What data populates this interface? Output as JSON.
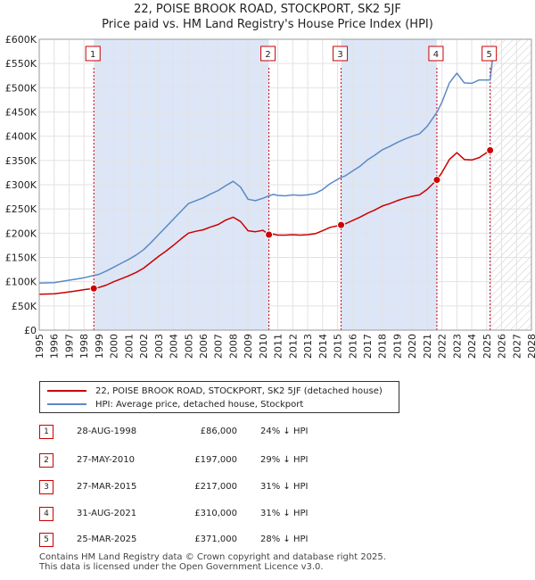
{
  "title_line1": "22, POISE BROOK ROAD, STOCKPORT, SK2 5JF",
  "title_line2": "Price paid vs. HM Land Registry's House Price Index (HPI)",
  "legend": {
    "property_label": "22, POISE BROOK ROAD, STOCKPORT, SK2 5JF (detached house)",
    "hpi_label": "HPI: Average price, detached house, Stockport"
  },
  "sales": [
    {
      "num": "1",
      "date": "28-AUG-1998",
      "price": "£86,000",
      "hpi": "24% ↓ HPI"
    },
    {
      "num": "2",
      "date": "27-MAY-2010",
      "price": "£197,000",
      "hpi": "29% ↓ HPI"
    },
    {
      "num": "3",
      "date": "27-MAR-2015",
      "price": "£217,000",
      "hpi": "31% ↓ HPI"
    },
    {
      "num": "4",
      "date": "31-AUG-2021",
      "price": "£310,000",
      "hpi": "31% ↓ HPI"
    },
    {
      "num": "5",
      "date": "25-MAR-2025",
      "price": "£371,000",
      "hpi": "28% ↓ HPI"
    }
  ],
  "footer_line1": "Contains HM Land Registry data © Crown copyright and database right 2025.",
  "footer_line2": "This data is licensed under the Open Government Licence v3.0.",
  "colors": {
    "property": "#cc0000",
    "hpi": "#5b8ac5",
    "shade": "#dde6f7",
    "grid": "#e2e2e2",
    "marker_border": "#cc0000"
  },
  "chart_data": {
    "type": "line",
    "title": "22, POISE BROOK ROAD, STOCKPORT, SK2 5JF",
    "subtitle": "Price paid vs. HM Land Registry's House Price Index (HPI)",
    "xlabel": "",
    "ylabel": "",
    "xlim": [
      1995,
      2028
    ],
    "ylim": [
      0,
      600000
    ],
    "x_ticks": [
      1995,
      1996,
      1997,
      1998,
      1999,
      2000,
      2001,
      2002,
      2003,
      2004,
      2005,
      2006,
      2007,
      2008,
      2009,
      2010,
      2011,
      2012,
      2013,
      2014,
      2015,
      2016,
      2017,
      2018,
      2019,
      2020,
      2021,
      2022,
      2023,
      2024,
      2025,
      2026,
      2027,
      2028
    ],
    "y_ticks": [
      {
        "value": 0,
        "label": "£0"
      },
      {
        "value": 50000,
        "label": "£50K"
      },
      {
        "value": 100000,
        "label": "£100K"
      },
      {
        "value": 150000,
        "label": "£150K"
      },
      {
        "value": 200000,
        "label": "£200K"
      },
      {
        "value": 250000,
        "label": "£250K"
      },
      {
        "value": 300000,
        "label": "£300K"
      },
      {
        "value": 350000,
        "label": "£350K"
      },
      {
        "value": 400000,
        "label": "£400K"
      },
      {
        "value": 450000,
        "label": "£450K"
      },
      {
        "value": 500000,
        "label": "£500K"
      },
      {
        "value": 550000,
        "label": "£550K"
      },
      {
        "value": 600000,
        "label": "£600K"
      }
    ],
    "grid": true,
    "legend_position": "below",
    "forecast_start": 2025.3,
    "shaded_ranges": [
      [
        1998.66,
        2010.4
      ],
      [
        2015.24,
        2021.66
      ],
      [
        2025.23,
        2025.3
      ]
    ],
    "series": [
      {
        "name": "22, POISE BROOK ROAD, STOCKPORT, SK2 5JF (detached house)",
        "x": [
          1995.0,
          1995.5,
          1996.0,
          1996.5,
          1997.0,
          1997.5,
          1998.0,
          1998.66,
          1999.0,
          1999.5,
          2000.0,
          2000.5,
          2001.0,
          2001.5,
          2002.0,
          2002.5,
          2003.0,
          2003.5,
          2004.0,
          2004.5,
          2005.0,
          2005.5,
          2006.0,
          2006.5,
          2007.0,
          2007.5,
          2008.0,
          2008.5,
          2009.0,
          2009.5,
          2010.0,
          2010.4,
          2010.7,
          2011.0,
          2011.5,
          2012.0,
          2012.5,
          2013.0,
          2013.5,
          2014.0,
          2014.5,
          2015.24,
          2015.5,
          2016.0,
          2016.5,
          2017.0,
          2017.5,
          2018.0,
          2018.5,
          2019.0,
          2019.5,
          2020.0,
          2020.5,
          2021.0,
          2021.66,
          2022.0,
          2022.5,
          2023.0,
          2023.5,
          2024.0,
          2024.5,
          2025.23
        ],
        "values": [
          74000,
          74500,
          75000,
          77000,
          79000,
          81000,
          83500,
          86000,
          88000,
          93000,
          100000,
          106000,
          112000,
          119000,
          128000,
          140000,
          152000,
          163000,
          175000,
          188000,
          200000,
          204000,
          207000,
          213000,
          218000,
          227000,
          233000,
          224000,
          205000,
          203000,
          206000,
          197000,
          198000,
          196000,
          196000,
          197000,
          196000,
          197000,
          199000,
          205000,
          212000,
          217000,
          219000,
          226000,
          233000,
          241000,
          248000,
          256000,
          261000,
          267000,
          272000,
          276000,
          279000,
          290000,
          310000,
          325000,
          352000,
          366000,
          352000,
          351000,
          356000,
          371000
        ]
      },
      {
        "name": "HPI: Average price, detached house, Stockport",
        "x": [
          1995.0,
          1995.5,
          1996.0,
          1996.5,
          1997.0,
          1997.5,
          1998.0,
          1998.66,
          1999.0,
          1999.5,
          2000.0,
          2000.5,
          2001.0,
          2001.5,
          2002.0,
          2002.5,
          2003.0,
          2003.5,
          2004.0,
          2004.5,
          2005.0,
          2005.5,
          2006.0,
          2006.5,
          2007.0,
          2007.5,
          2008.0,
          2008.5,
          2009.0,
          2009.5,
          2010.0,
          2010.4,
          2010.7,
          2011.0,
          2011.5,
          2012.0,
          2012.5,
          2013.0,
          2013.5,
          2014.0,
          2014.5,
          2015.24,
          2015.5,
          2016.0,
          2016.5,
          2017.0,
          2017.5,
          2018.0,
          2018.5,
          2019.0,
          2019.5,
          2020.0,
          2020.5,
          2021.0,
          2021.66,
          2022.0,
          2022.5,
          2023.0,
          2023.5,
          2024.0,
          2024.5,
          2025.23,
          2025.4
        ],
        "values": [
          97000,
          97500,
          98000,
          100500,
          103000,
          105500,
          108000,
          113000,
          115000,
          122000,
          130000,
          138000,
          146000,
          155000,
          166000,
          181000,
          197000,
          213000,
          229000,
          245000,
          261000,
          267000,
          273000,
          281000,
          288000,
          298000,
          307000,
          295000,
          270000,
          267000,
          272000,
          277000,
          280000,
          278000,
          277000,
          279000,
          278000,
          279000,
          282000,
          290000,
          302000,
          315000,
          318000,
          328000,
          338000,
          351000,
          361000,
          372000,
          379000,
          387000,
          394000,
          400000,
          405000,
          420000,
          449000,
          470000,
          510000,
          530000,
          510000,
          509000,
          516000,
          516000,
          560000
        ]
      }
    ],
    "sale_markers": [
      {
        "label": "1",
        "x": 1998.66,
        "value": 86000
      },
      {
        "label": "2",
        "x": 2010.4,
        "value": 197000
      },
      {
        "label": "3",
        "x": 2015.24,
        "value": 217000
      },
      {
        "label": "4",
        "x": 2021.66,
        "value": 310000
      },
      {
        "label": "5",
        "x": 2025.23,
        "value": 371000
      }
    ]
  }
}
